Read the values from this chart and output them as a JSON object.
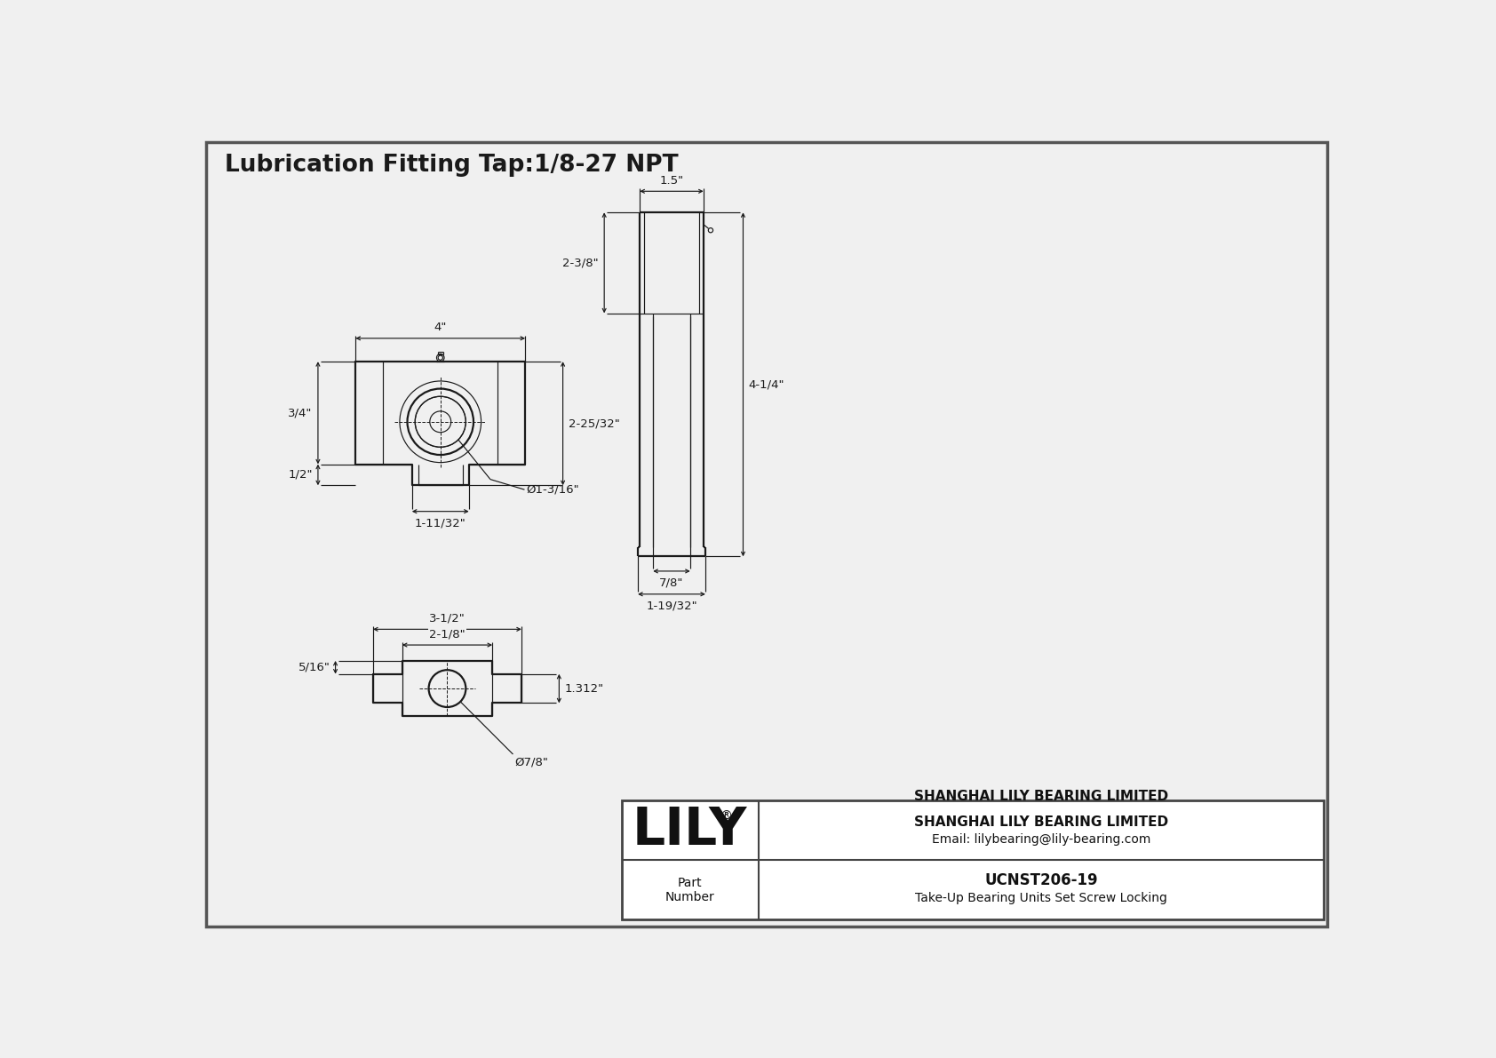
{
  "title": "Lubrication Fitting Tap:1/8-27 NPT",
  "bg_color": "#f0f0f0",
  "line_color": "#1a1a1a",
  "dim_color": "#1a1a1a",
  "title_fontsize": 19,
  "dim_fontsize": 9.5,
  "company_name": "SHANGHAI LILY BEARING LIMITED",
  "company_email": "Email: lilybearing@lily-bearing.com",
  "part_label": "Part\nNumber",
  "part_number": "UCNST206-19",
  "part_desc": "Take-Up Bearing Units Set Screw Locking",
  "lily_text": "LILY",
  "dims_front": {
    "width_top": "4\"",
    "height_left_upper": "3/4\"",
    "height_left_lower": "1/2\"",
    "width_slot": "1-11/32\"",
    "height_slot": "2-25/32\"",
    "bore_dia": "Ø1-3/16\""
  },
  "dims_side": {
    "width_top": "1.5\"",
    "height_upper": "2-3/8\"",
    "height_total": "4-1/4\"",
    "width_bottom": "7/8\"",
    "width_base": "1-19/32\""
  },
  "dims_bottom": {
    "width_outer": "3-1/2\"",
    "width_inner": "2-1/8\"",
    "height_right": "1.312\"",
    "height_left": "5/16\"",
    "bore_dia": "Ø7/8\""
  }
}
